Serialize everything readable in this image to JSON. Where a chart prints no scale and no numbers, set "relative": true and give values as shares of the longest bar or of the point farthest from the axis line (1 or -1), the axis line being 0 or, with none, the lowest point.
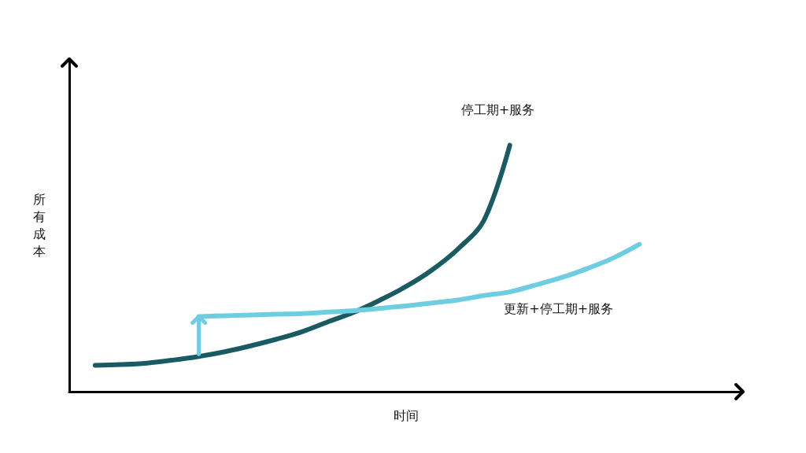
{
  "chart_data": {
    "type": "line",
    "relative": true,
    "xlabel": "时间",
    "ylabel": "所有成本",
    "legend": false,
    "grid": false,
    "marker": "none",
    "categories": [
      null,
      null,
      null,
      null,
      null,
      null,
      null,
      null,
      null,
      null,
      null,
      null,
      null,
      null,
      null,
      null,
      null,
      null,
      null,
      null,
      null,
      null,
      null,
      null,
      null,
      null,
      null
    ],
    "series": [
      {
        "name": "停工期+服务",
        "color": "#1a5a63",
        "values": [
          null,
          0.107,
          0.11,
          0.116,
          0.128,
          0.143,
          0.162,
          0.186,
          0.213,
          0.244,
          0.284,
          0.323,
          0.372,
          0.427,
          0.494,
          0.579,
          0.695,
          1.0,
          null,
          null,
          null,
          null,
          null,
          null,
          null,
          null,
          null
        ]
      },
      {
        "name": "更新+停工期+服务",
        "color": "#6ecde0",
        "values": [
          null,
          null,
          null,
          null,
          null,
          0.305,
          0.308,
          0.311,
          0.314,
          0.317,
          0.323,
          0.329,
          0.338,
          0.348,
          0.36,
          0.372,
          0.39,
          0.405,
          0.433,
          0.463,
          0.5,
          0.543,
          0.598,
          null,
          null,
          null,
          null
        ]
      }
    ]
  }
}
